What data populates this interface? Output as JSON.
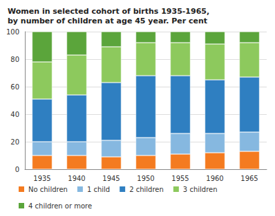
{
  "chart_data": {
    "type": "bar",
    "title": "Women in selected cohort of births 1935-1965, by number of children at age 45 year. Per cent",
    "categories": [
      "1935",
      "1940",
      "1945",
      "1950",
      "1955",
      "1960",
      "1965"
    ],
    "series": [
      {
        "name": "No children",
        "color": "#f47b20",
        "values": [
          10,
          10,
          9,
          10,
          11,
          12,
          13
        ]
      },
      {
        "name": "1 child",
        "color": "#86b8e0",
        "values": [
          10,
          10,
          12,
          13,
          15,
          14,
          14
        ]
      },
      {
        "name": "2 children",
        "color": "#2f7fc1",
        "values": [
          31,
          34,
          42,
          45,
          42,
          39,
          40
        ]
      },
      {
        "name": "3 children",
        "color": "#8dc95d",
        "values": [
          27,
          29,
          26,
          24,
          24,
          26,
          25
        ]
      },
      {
        "name": "4 children or more",
        "color": "#5ba53b",
        "values": [
          22,
          17,
          11,
          8,
          8,
          9,
          8
        ]
      }
    ],
    "ylim": [
      0,
      100
    ],
    "yticks": [
      0,
      20,
      40,
      60,
      80,
      100
    ],
    "stacked": true,
    "grid": true,
    "legend": "bottom"
  }
}
